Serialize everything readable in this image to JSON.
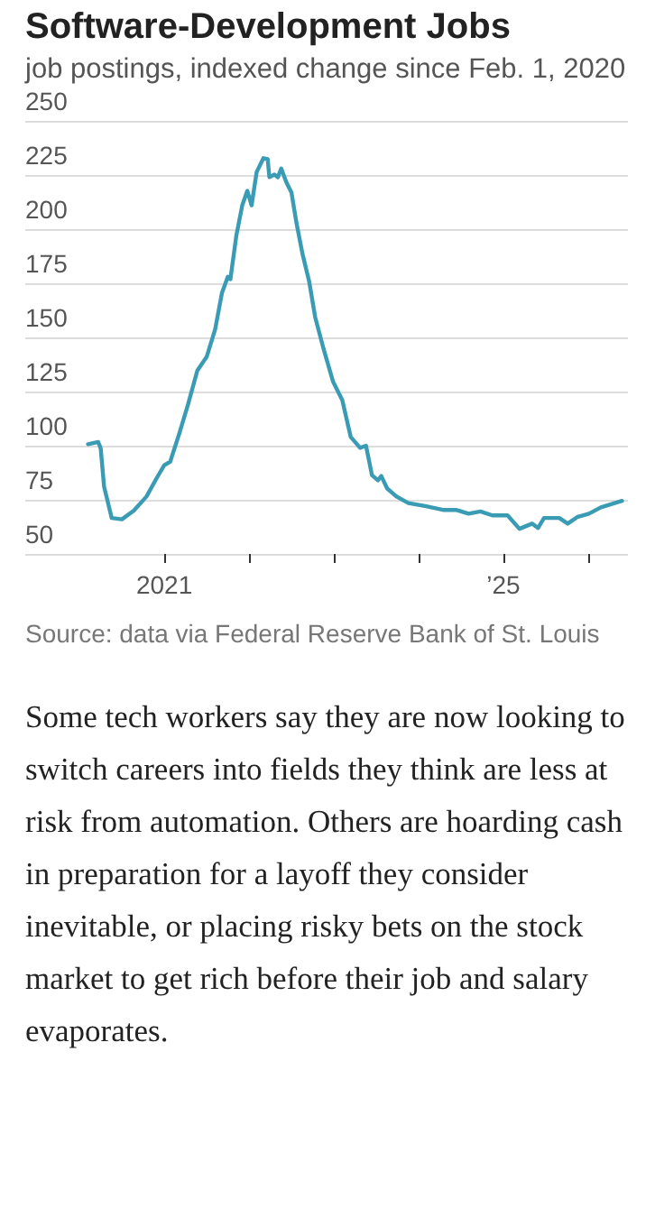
{
  "chart_data": {
    "type": "line",
    "title": "Software-Development Jobs",
    "subtitle": "job postings, indexed change since Feb. 1, 2020",
    "x": [
      2020.1,
      2020.22,
      2020.25,
      2020.29,
      2020.38,
      2020.5,
      2020.64,
      2020.79,
      2020.91,
      2021.0,
      2021.07,
      2021.18,
      2021.28,
      2021.39,
      2021.5,
      2021.6,
      2021.68,
      2021.75,
      2021.78,
      2021.85,
      2021.92,
      2021.98,
      2022.03,
      2022.09,
      2022.17,
      2022.22,
      2022.24,
      2022.3,
      2022.34,
      2022.38,
      2022.44,
      2022.5,
      2022.56,
      2022.63,
      2022.71,
      2022.78,
      2022.88,
      2022.99,
      2023.1,
      2023.2,
      2023.31,
      2023.38,
      2023.45,
      2023.52,
      2023.56,
      2023.63,
      2023.74,
      2023.88,
      2024.09,
      2024.3,
      2024.45,
      2024.59,
      2024.73,
      2024.87,
      2025.05,
      2025.19,
      2025.34,
      2025.41,
      2025.48,
      2025.66,
      2025.76,
      2025.87,
      2026.01,
      2026.15,
      2026.4
    ],
    "series": [
      {
        "color": "#3a9bb5",
        "values": [
          100.7,
          101.7,
          98.8,
          81,
          66.6,
          66,
          70,
          76.5,
          85,
          91,
          92.6,
          106,
          119,
          134.7,
          141,
          153.7,
          170.5,
          178,
          176.9,
          197,
          211,
          217.7,
          211,
          226.4,
          232.8,
          232.3,
          224,
          225.2,
          224,
          228,
          221.7,
          217,
          202.8,
          188.7,
          175.7,
          159.4,
          144.6,
          129.7,
          121,
          104,
          99,
          100,
          86.4,
          84,
          86,
          80.2,
          76.5,
          73.5,
          72,
          70.3,
          70.3,
          68.6,
          69.6,
          67.8,
          67.8,
          61.6,
          64,
          62,
          66.6,
          66.6,
          64,
          67,
          68.6,
          71.5,
          74.5
        ]
      }
    ],
    "xlim": [
      2019.36,
      2026.47
    ],
    "xticks": [
      {
        "value": 2021,
        "label": "2021"
      },
      {
        "value": 2022,
        "label": null
      },
      {
        "value": 2023,
        "label": null
      },
      {
        "value": 2024,
        "label": null
      },
      {
        "value": 2025,
        "label": "’25"
      },
      {
        "value": 2026,
        "label": null
      }
    ],
    "ylim": [
      50,
      250
    ],
    "yticks": [
      50,
      75,
      100,
      125,
      150,
      175,
      200,
      225,
      250
    ],
    "grid": "y",
    "marker": "none",
    "line_style": "solid",
    "annotations": [
      "Source: data via Federal Reserve Bank of St. Louis",
      "Some tech workers say they are now looking to switch careers into fields they think are less at risk from automation. Others are hoarding cash in preparation for a layoff they consider inevitable, or placing risky bets on the stock market to get rich before their job and salary evaporates."
    ]
  }
}
